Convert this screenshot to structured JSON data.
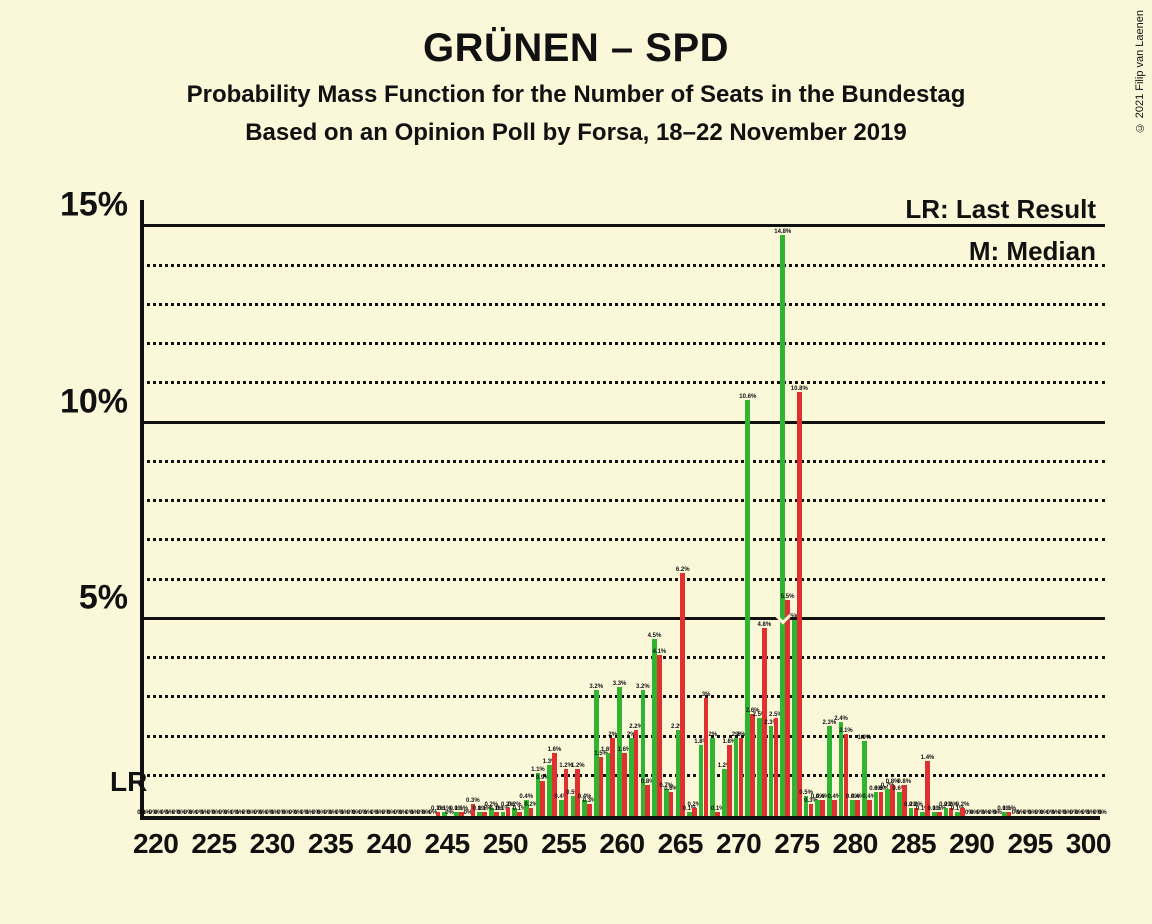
{
  "copyright": "© 2021 Filip van Laenen",
  "title": {
    "main": "GRÜNEN – SPD",
    "sub1": "Probability Mass Function for the Number of Seats in the Bundestag",
    "sub2": "Based on an Opinion Poll by Forsa, 18–22 November 2019"
  },
  "legend": {
    "lr": "LR: Last Result",
    "m": "M: Median"
  },
  "lr_annotation": "LR",
  "y_axis": {
    "min": 0,
    "max": 15.7,
    "major_ticks": [
      5,
      10,
      15
    ],
    "minor_step": 1,
    "tick_labels": {
      "5": "5%",
      "10": "10%",
      "15": "15%"
    }
  },
  "x_axis": {
    "min": 219,
    "max": 301,
    "tick_step": 5,
    "ticks": [
      220,
      225,
      230,
      235,
      240,
      245,
      250,
      255,
      260,
      265,
      270,
      275,
      280,
      285,
      290,
      295,
      300
    ]
  },
  "series": {
    "green": {
      "color": "#2fb52f",
      "median": 274,
      "data": {
        "219": 0,
        "220": 0,
        "221": 0,
        "222": 0,
        "223": 0,
        "224": 0,
        "225": 0,
        "226": 0,
        "227": 0,
        "228": 0,
        "229": 0,
        "230": 0,
        "231": 0,
        "232": 0,
        "233": 0,
        "234": 0,
        "235": 0,
        "236": 0,
        "237": 0,
        "238": 0,
        "239": 0,
        "240": 0,
        "241": 0,
        "242": 0,
        "243": 0,
        "244": 0,
        "245": 0.1,
        "246": 0.1,
        "247": 0,
        "248": 0.1,
        "249": 0.2,
        "250": 0.1,
        "251": 0.2,
        "252": 0.4,
        "253": 1.1,
        "254": 1.3,
        "255": 0.4,
        "256": 0.5,
        "257": 0.4,
        "258": 3.2,
        "259": 1.6,
        "260": 3.3,
        "261": 2.0,
        "262": 3.2,
        "263": 4.5,
        "264": 0.7,
        "265": 2.2,
        "266": 0.1,
        "267": 1.8,
        "268": 2.0,
        "269": 1.2,
        "270": 2.0,
        "271": 10.6,
        "272": 2.5,
        "273": 2.3,
        "274": 14.8,
        "275": 5.0,
        "276": 0.5,
        "277": 0.4,
        "278": 2.3,
        "279": 2.4,
        "280": 0.4,
        "281": 1.9,
        "282": 0.6,
        "283": 0.7,
        "284": 0.6,
        "285": 0.2,
        "286": 0.1,
        "287": 0.1,
        "288": 0.2,
        "289": 0.1,
        "290": 0,
        "291": 0,
        "292": 0,
        "293": 0.1,
        "294": 0,
        "295": 0,
        "296": 0,
        "297": 0,
        "298": 0,
        "299": 0,
        "300": 0,
        "301": 0
      }
    },
    "red": {
      "color": "#e03030",
      "data": {
        "219": 0,
        "220": 0,
        "221": 0,
        "222": 0,
        "223": 0,
        "224": 0,
        "225": 0,
        "226": 0,
        "227": 0,
        "228": 0,
        "229": 0,
        "230": 0,
        "231": 0,
        "232": 0,
        "233": 0,
        "234": 0,
        "235": 0,
        "236": 0,
        "237": 0,
        "238": 0,
        "239": 0,
        "240": 0,
        "241": 0,
        "242": 0,
        "243": 0,
        "244": 0.1,
        "245": 0,
        "246": 0.1,
        "247": 0.3,
        "248": 0.1,
        "249": 0.1,
        "250": 0.2,
        "251": 0.1,
        "252": 0.2,
        "253": 0.9,
        "254": 1.6,
        "255": 1.2,
        "256": 1.2,
        "257": 0.3,
        "258": 1.5,
        "259": 2.0,
        "260": 1.6,
        "261": 2.2,
        "262": 0.8,
        "263": 4.1,
        "264": 0.6,
        "265": 6.2,
        "266": 0.2,
        "267": 3.0,
        "268": 0.1,
        "269": 1.8,
        "270": 2.0,
        "271": 2.6,
        "272": 4.8,
        "273": 2.5,
        "274": 5.5,
        "275": 10.8,
        "276": 0.3,
        "277": 0.4,
        "278": 0.4,
        "279": 2.1,
        "280": 0.4,
        "281": 0.4,
        "282": 0.6,
        "283": 0.8,
        "284": 0.8,
        "285": 0.2,
        "286": 1.4,
        "287": 0.1,
        "288": 0.2,
        "289": 0.2,
        "290": 0,
        "291": 0,
        "292": 0,
        "293": 0.1,
        "294": 0,
        "295": 0,
        "296": 0,
        "297": 0,
        "298": 0,
        "299": 0,
        "300": 0,
        "301": 0
      }
    }
  },
  "styling": {
    "background": "#fbf7d9",
    "axis_color": "#111111",
    "grid_major_color": "#111111",
    "grid_minor_color": "#111111",
    "font_family": "Segoe UI, Helvetica Neue, Arial, sans-serif",
    "title_fontsize_pt": 30,
    "subtitle_fontsize_pt": 18,
    "axis_label_fontsize_pt": 26,
    "legend_fontsize_pt": 20
  }
}
